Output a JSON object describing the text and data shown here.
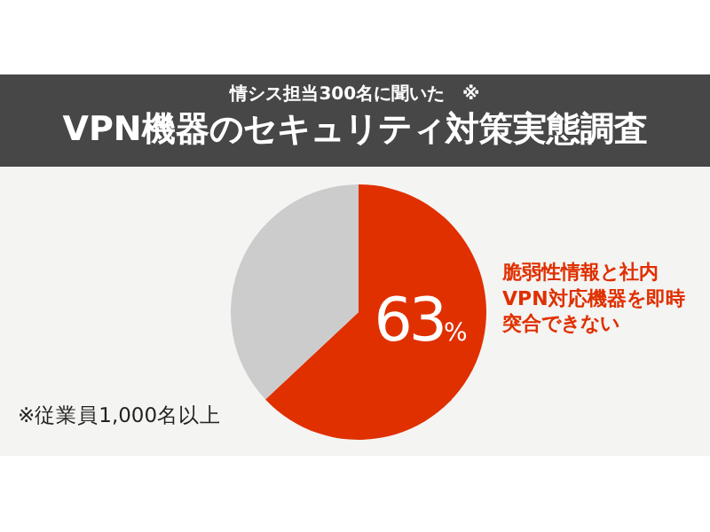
{
  "chart_data": {
    "type": "pie",
    "title": "VPN機器のセキュリティ対策実態調査",
    "subtitle": "情シス担当300名に聞いた　※",
    "categories": [
      "脆弱性情報と社内VPN対応機器を即時突合できない",
      null
    ],
    "values": [
      63,
      37
    ],
    "colors": [
      "#e03000",
      "#cccccc"
    ],
    "value_labels": [
      "63%",
      null
    ],
    "annotations": [
      "※従業員1,000名以上"
    ]
  }
}
